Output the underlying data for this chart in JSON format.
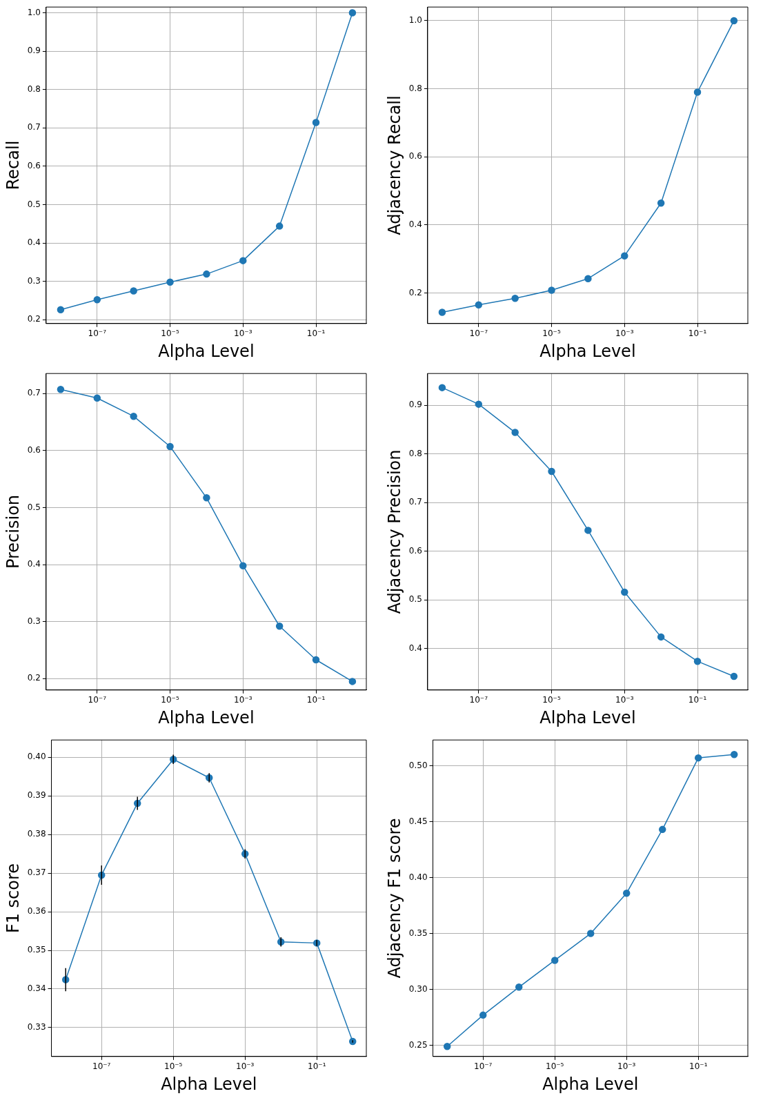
{
  "chart_data": [
    {
      "type": "line",
      "xlabel": "Alpha Level",
      "ylabel": "Recall",
      "x": [
        1e-08,
        1e-07,
        1e-06,
        1e-05,
        0.0001,
        0.001,
        0.01,
        0.1,
        1
      ],
      "values": [
        0.226,
        0.252,
        0.275,
        0.298,
        0.319,
        0.354,
        0.444,
        0.714,
        1.0
      ],
      "color": "#1f77b4",
      "log": "x",
      "grid": true,
      "marker": "circle",
      "line_style": "solid",
      "xlim": [
        4e-09,
        2.4
      ],
      "xticks": [
        {
          "value": 1e-07,
          "label": "10⁻⁷"
        },
        {
          "value": 1e-05,
          "label": "10⁻⁵"
        },
        {
          "value": 0.001,
          "label": "10⁻³"
        },
        {
          "value": 0.1,
          "label": "10⁻¹"
        }
      ],
      "ylim": [
        0.19,
        1.015
      ],
      "yticks": [
        0.2,
        0.3,
        0.4,
        0.5,
        0.6,
        0.7,
        0.8,
        0.9,
        {
          "value": 1,
          "label": "1.0"
        }
      ]
    },
    {
      "type": "line",
      "xlabel": "Alpha Level",
      "ylabel": "Adjacency Recall",
      "x": [
        1e-08,
        1e-07,
        1e-06,
        1e-05,
        0.0001,
        0.001,
        0.01,
        0.1,
        1
      ],
      "values": [
        0.143,
        0.165,
        0.184,
        0.208,
        0.242,
        0.309,
        0.464,
        0.79,
        1.0
      ],
      "color": "#1f77b4",
      "log": "x",
      "grid": true,
      "marker": "circle",
      "line_style": "solid",
      "xlim": [
        4e-09,
        2.4
      ],
      "xticks": [
        {
          "value": 1e-07,
          "label": "10⁻⁷"
        },
        {
          "value": 1e-05,
          "label": "10⁻⁵"
        },
        {
          "value": 0.001,
          "label": "10⁻³"
        },
        {
          "value": 0.1,
          "label": "10⁻¹"
        }
      ],
      "ylim": [
        0.11,
        1.04
      ],
      "yticks": [
        0.2,
        0.4,
        0.6,
        0.8,
        {
          "value": 1,
          "label": "1.0"
        }
      ]
    },
    {
      "type": "line",
      "xlabel": "Alpha Level",
      "ylabel": "Precision",
      "x": [
        1e-08,
        1e-07,
        1e-06,
        1e-05,
        0.0001,
        0.001,
        0.01,
        0.1,
        1
      ],
      "values": [
        0.707,
        0.692,
        0.66,
        0.607,
        0.517,
        0.398,
        0.292,
        0.233,
        0.195
      ],
      "color": "#1f77b4",
      "log": "x",
      "grid": true,
      "marker": "circle",
      "line_style": "solid",
      "xlim": [
        4e-09,
        2.4
      ],
      "xticks": [
        {
          "value": 1e-07,
          "label": "10⁻⁷"
        },
        {
          "value": 1e-05,
          "label": "10⁻⁵"
        },
        {
          "value": 0.001,
          "label": "10⁻³"
        },
        {
          "value": 0.1,
          "label": "10⁻¹"
        }
      ],
      "ylim": [
        0.18,
        0.735
      ],
      "yticks": [
        0.2,
        0.3,
        0.4,
        0.5,
        0.6,
        0.7
      ]
    },
    {
      "type": "line",
      "xlabel": "Alpha Level",
      "ylabel": "Adjacency Precision",
      "x": [
        1e-08,
        1e-07,
        1e-06,
        1e-05,
        0.0001,
        0.001,
        0.01,
        0.1,
        1
      ],
      "values": [
        0.936,
        0.902,
        0.844,
        0.764,
        0.643,
        0.516,
        0.424,
        0.374,
        0.343
      ],
      "color": "#1f77b4",
      "log": "x",
      "grid": true,
      "marker": "circle",
      "line_style": "solid",
      "xlim": [
        4e-09,
        2.4
      ],
      "xticks": [
        {
          "value": 1e-07,
          "label": "10⁻⁷"
        },
        {
          "value": 1e-05,
          "label": "10⁻⁵"
        },
        {
          "value": 0.001,
          "label": "10⁻³"
        },
        {
          "value": 0.1,
          "label": "10⁻¹"
        }
      ],
      "ylim": [
        0.315,
        0.965
      ],
      "yticks": [
        0.4,
        0.5,
        0.6,
        0.7,
        0.8,
        0.9
      ]
    },
    {
      "type": "line",
      "xlabel": "Alpha Level",
      "ylabel": "F1 score",
      "x": [
        1e-08,
        1e-07,
        1e-06,
        1e-05,
        0.0001,
        0.001,
        0.01,
        0.1,
        1
      ],
      "values": [
        0.3424,
        0.3695,
        0.3881,
        0.3995,
        0.3947,
        0.375,
        0.3522,
        0.3519,
        0.3264
      ],
      "errors": [
        0.003,
        0.0025,
        0.0017,
        0.0012,
        0.0012,
        0.0012,
        0.0012,
        0.0008,
        0.0003
      ],
      "color": "#1f77b4",
      "log": "x",
      "grid": true,
      "marker": "circle",
      "line_style": "solid",
      "xlim": [
        4e-09,
        2.4
      ],
      "xticks": [
        {
          "value": 1e-07,
          "label": "10⁻⁷"
        },
        {
          "value": 1e-05,
          "label": "10⁻⁵"
        },
        {
          "value": 0.001,
          "label": "10⁻³"
        },
        {
          "value": 0.1,
          "label": "10⁻¹"
        }
      ],
      "ylim": [
        0.3225,
        0.4045
      ],
      "yticks": [
        0.33,
        0.34,
        0.35,
        0.36,
        0.37,
        0.38,
        0.39,
        {
          "value": 0.4,
          "label": "0.40"
        }
      ]
    },
    {
      "type": "line",
      "xlabel": "Alpha Level",
      "ylabel": "Adjacency F1 score",
      "x": [
        1e-08,
        1e-07,
        1e-06,
        1e-05,
        0.0001,
        0.001,
        0.01,
        0.1,
        1
      ],
      "values": [
        0.249,
        0.277,
        0.302,
        0.326,
        0.35,
        0.386,
        0.443,
        0.507,
        0.51
      ],
      "color": "#1f77b4",
      "log": "x",
      "grid": true,
      "marker": "circle",
      "line_style": "solid",
      "xlim": [
        4e-09,
        2.4
      ],
      "xticks": [
        {
          "value": 1e-07,
          "label": "10⁻⁷"
        },
        {
          "value": 1e-05,
          "label": "10⁻⁵"
        },
        {
          "value": 0.001,
          "label": "10⁻³"
        },
        {
          "value": 0.1,
          "label": "10⁻¹"
        }
      ],
      "ylim": [
        0.24,
        0.523
      ],
      "yticks": [
        0.25,
        {
          "value": 0.3,
          "label": "0.30"
        },
        0.35,
        {
          "value": 0.4,
          "label": "0.40"
        },
        0.45,
        {
          "value": 0.5,
          "label": "0.50"
        }
      ]
    }
  ]
}
